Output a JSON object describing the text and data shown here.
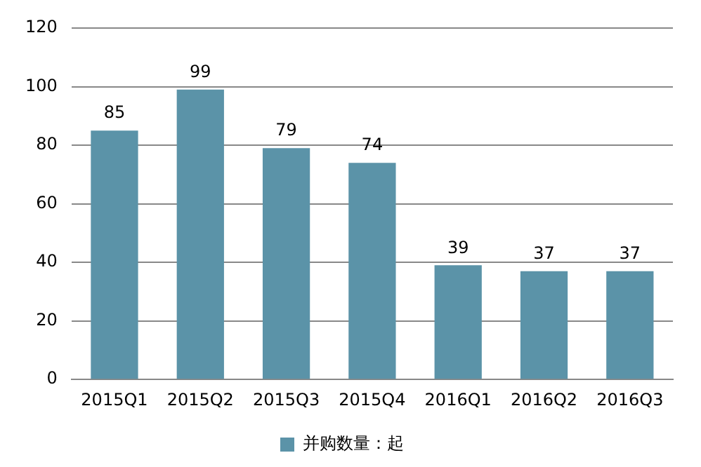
{
  "chart_data": {
    "type": "bar",
    "categories": [
      "2015Q1",
      "2015Q2",
      "2015Q3",
      "2015Q4",
      "2016Q1",
      "2016Q2",
      "2016Q3"
    ],
    "series": [
      {
        "name": "并购数量：起",
        "color": "#5b93a8",
        "values": [
          85,
          99,
          79,
          74,
          39,
          37,
          37
        ]
      }
    ],
    "ylim": [
      0,
      120
    ],
    "yticks": [
      0,
      20,
      40,
      60,
      80,
      100,
      120
    ],
    "grid": "y",
    "legend": "bottom",
    "data_labels": true
  }
}
